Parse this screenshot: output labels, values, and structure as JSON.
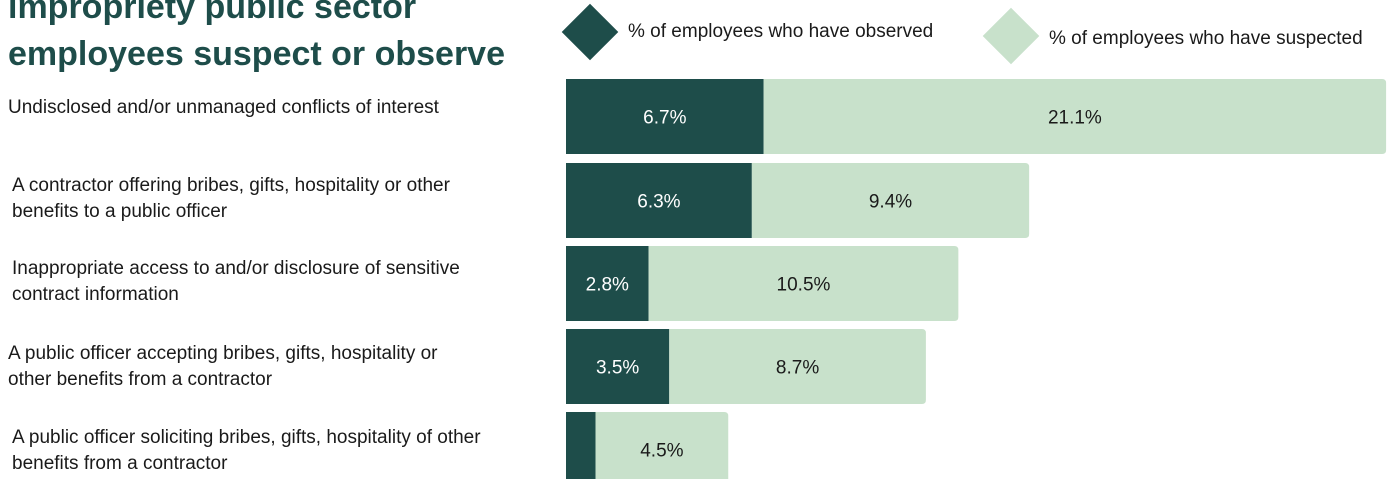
{
  "chart_data": {
    "type": "bar",
    "orientation": "horizontal",
    "stacked": true,
    "title_lines": [
      "impropriety public sector",
      "employees suspect or observe"
    ],
    "categories": [
      [
        "Undisclosed and/or unmanaged conflicts of interest"
      ],
      [
        "A contractor offering bribes, gifts, hospitality or other",
        "benefits to a public officer"
      ],
      [
        "Inappropriate access to and/or disclosure of sensitive",
        "contract information"
      ],
      [
        "A public officer accepting bribes, gifts, hospitality or",
        "other benefits from a contractor"
      ],
      [
        "A public officer soliciting bribes, gifts, hospitality of other",
        "benefits from a contractor"
      ]
    ],
    "series": [
      {
        "name": "% of employees who have observed",
        "color": "#1e4d4a",
        "values": [
          6.7,
          6.3,
          2.8,
          3.5,
          1.0
        ],
        "labels": [
          "6.7%",
          "6.3%",
          "2.8%",
          "3.5%",
          ""
        ]
      },
      {
        "name": "% of employees who have suspected",
        "color": "#c8e1cb",
        "values": [
          21.1,
          9.4,
          10.5,
          8.7,
          4.5
        ],
        "labels": [
          "21.1%",
          "9.4%",
          "10.5%",
          "8.7%",
          "4.5%"
        ]
      }
    ],
    "legend": "top-right",
    "grid": false
  }
}
